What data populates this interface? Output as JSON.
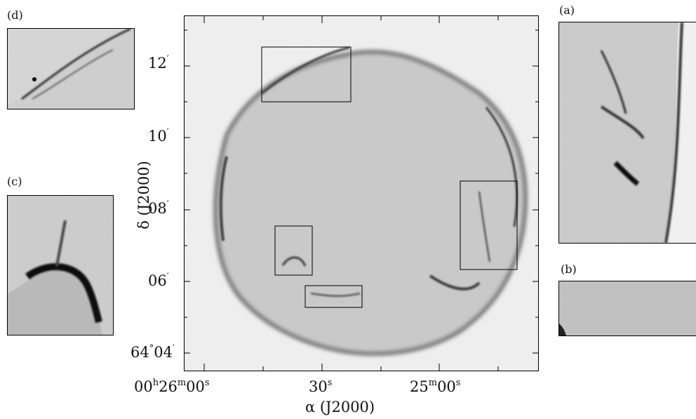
{
  "main_image": {
    "y_ticks": [
      {
        "deg": "",
        "min": "12",
        "prime": "′"
      },
      {
        "deg": "",
        "min": "10",
        "prime": "′"
      },
      {
        "deg": "",
        "min": "08",
        "prime": "′"
      },
      {
        "deg": "",
        "min": "06",
        "prime": "′"
      },
      {
        "deg": "64",
        "degsym": "°",
        "min": "04",
        "prime": "′"
      }
    ],
    "x_ticks": [
      {
        "h": "00",
        "hs": "h",
        "m": "26",
        "ms": "m",
        "s": "00",
        "ss": "s"
      },
      {
        "s": "30",
        "ss": "s"
      },
      {
        "m": "25",
        "ms": "m",
        "s": "00",
        "ss": "s"
      }
    ],
    "y_title": "δ  (J2000)",
    "x_title": "α  (J2000)"
  },
  "insets": {
    "a": "(a)",
    "b": "(b)",
    "c": "(c)",
    "d": "(d)"
  }
}
